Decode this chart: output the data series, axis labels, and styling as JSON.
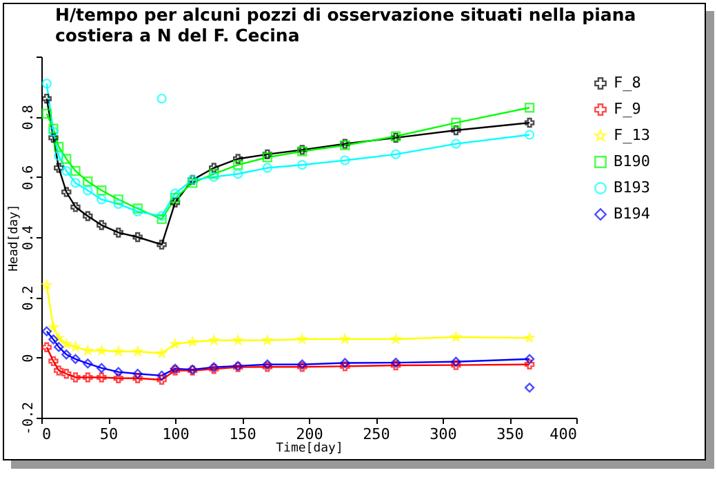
{
  "chart_data": {
    "type": "line",
    "title": "H/tempo per alcuni pozzi di osservazione situati nella piana costiera a N del F. Cecina",
    "xlabel": "Time[day]",
    "ylabel": "Head[day]",
    "xlim": [
      0,
      400
    ],
    "xticks": [
      0,
      50,
      100,
      150,
      200,
      250,
      300,
      350,
      400
    ],
    "ylim": [
      -0.2,
      1
    ],
    "yticks": [
      {
        "value": -0.2,
        "label": "-0.2"
      },
      0,
      0.2,
      0.4,
      0.6,
      0.8,
      {
        "value": 1,
        "label": null
      }
    ],
    "x": [
      4,
      9,
      13,
      18.7,
      25.5,
      34.7,
      45,
      57.6,
      72,
      90,
      100,
      113,
      129,
      147,
      169,
      195,
      227,
      265,
      310,
      365
    ],
    "legend": "top right",
    "grid": false,
    "line_style": "solid",
    "series": [
      {
        "name": "F_8",
        "color": "#000000",
        "marker": "cross",
        "values": [
          0.86,
          0.73,
          0.63,
          0.55,
          0.5,
          0.47,
          0.44,
          0.415,
          0.4,
          0.375,
          0.515,
          0.59,
          0.63,
          0.66,
          0.675,
          0.69,
          0.71,
          0.73,
          0.755,
          0.78
        ]
      },
      {
        "name": "F_9",
        "color": "#ff0000",
        "marker": "cross",
        "values": [
          0.034,
          -0.012,
          -0.043,
          -0.054,
          -0.066,
          -0.066,
          -0.066,
          -0.069,
          -0.069,
          -0.074,
          -0.043,
          -0.043,
          -0.038,
          -0.032,
          -0.031,
          -0.031,
          -0.029,
          -0.026,
          -0.025,
          -0.023
        ]
      },
      {
        "name": "F_13",
        "color": "#ffff00",
        "marker": "star",
        "values": [
          0.24,
          0.1,
          0.065,
          0.045,
          0.035,
          0.023,
          0.023,
          0.02,
          0.02,
          0.014,
          0.045,
          0.052,
          0.057,
          0.057,
          0.057,
          0.061,
          0.061,
          0.061,
          0.068,
          0.065
        ]
      },
      {
        "name": "B190",
        "color": "#00ff00",
        "marker": "square",
        "values": [
          0.81,
          0.76,
          0.7,
          0.66,
          0.62,
          0.585,
          0.555,
          0.525,
          0.495,
          0.46,
          0.53,
          0.58,
          0.61,
          0.64,
          0.665,
          0.685,
          0.705,
          0.735,
          0.78,
          0.83
        ]
      },
      {
        "name": "B193",
        "color": "#00ffff",
        "marker": "circle",
        "values": [
          0.91,
          0.75,
          0.67,
          0.62,
          0.58,
          0.555,
          0.525,
          0.51,
          0.485,
          0.47,
          0.545,
          0.59,
          0.6,
          0.61,
          0.63,
          0.64,
          0.655,
          0.675,
          0.71,
          0.74
        ]
      },
      {
        "name": "B194",
        "color": "#0000ff",
        "marker": "diamond",
        "values": [
          0.087,
          0.06,
          0.035,
          0.01,
          -0.005,
          -0.02,
          -0.035,
          -0.048,
          -0.054,
          -0.06,
          -0.037,
          -0.04,
          -0.032,
          -0.028,
          -0.023,
          -0.023,
          -0.018,
          -0.017,
          -0.014,
          -0.005
        ]
      },
      {
        "type": "scatter",
        "color": "#00ffff",
        "marker": "circle",
        "x": [
          90
        ],
        "values": [
          0.86
        ]
      },
      {
        "type": "scatter",
        "color": "#0000ff",
        "marker": "diamond",
        "x": [
          365
        ],
        "values": [
          -0.1
        ]
      }
    ]
  }
}
